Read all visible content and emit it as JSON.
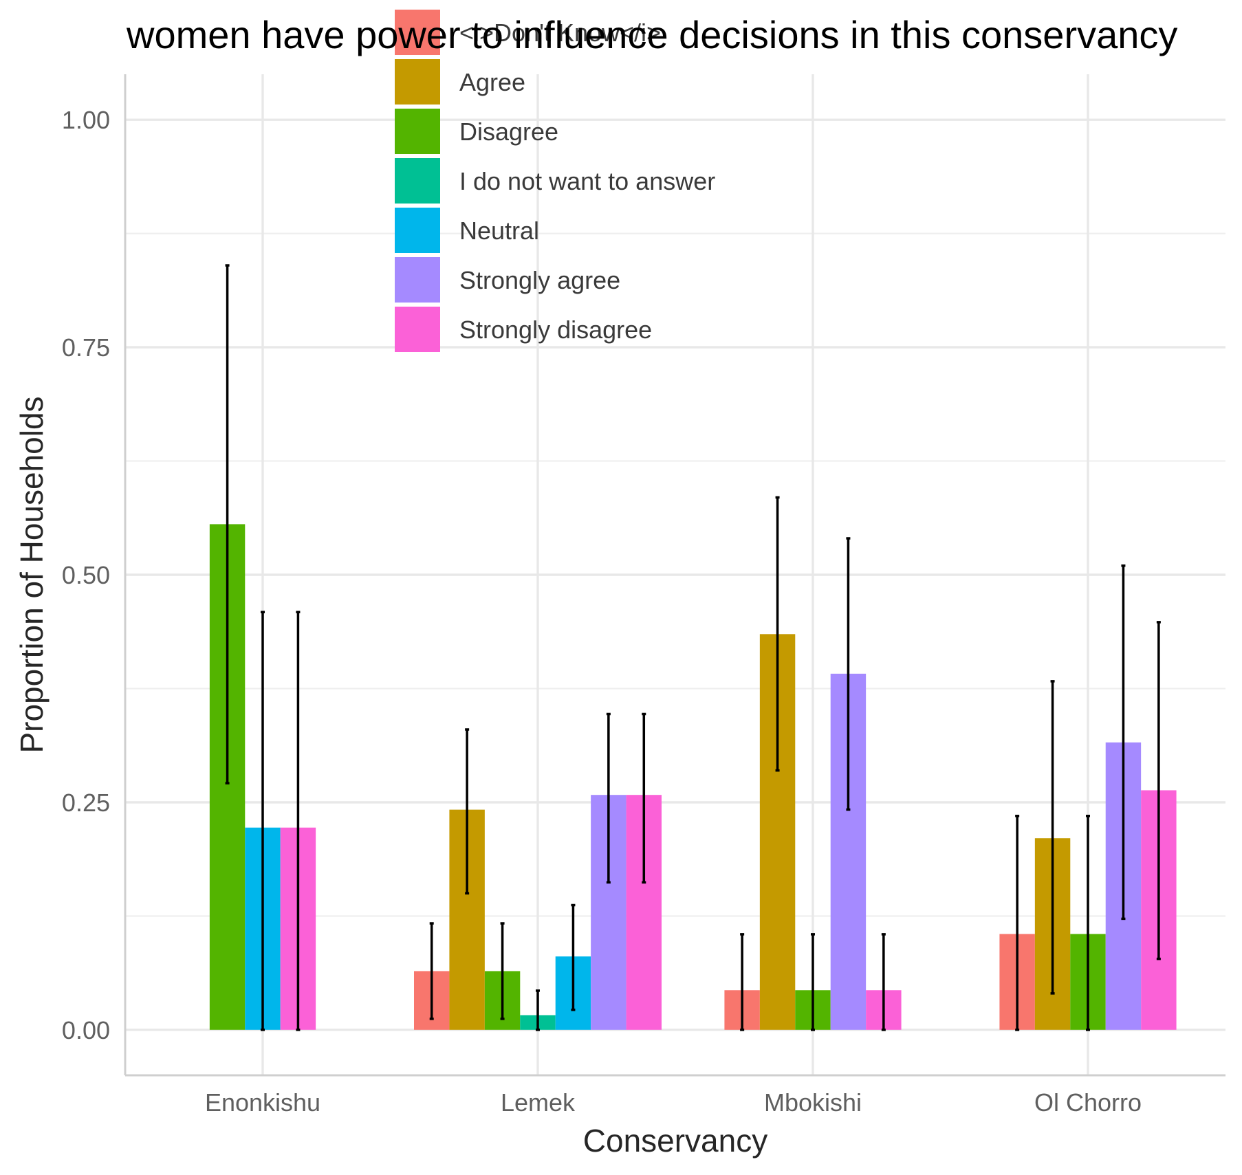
{
  "chart_data": {
    "type": "bar",
    "title": "women have power to influence decisions in this conservancy",
    "xlabel": "Conservancy",
    "ylabel": "Proportion of Households",
    "categories": [
      "Enonkishu",
      "Lemek",
      "Mbokishi",
      "Ol Chorro"
    ],
    "ylim": [
      -0.05,
      1.05
    ],
    "yticks": [
      "0.00",
      "0.25",
      "0.50",
      "0.75",
      "1.00"
    ],
    "ytick_values": [
      0,
      0.25,
      0.5,
      0.75,
      1.0
    ],
    "grid": true,
    "legend_position": "top",
    "series": [
      {
        "name": "<i>Don't Know</i>",
        "color": "#F8766D",
        "values": [
          null,
          0.0645,
          0.0435,
          0.1053
        ],
        "lower": [
          null,
          0.012,
          0.0,
          0.0
        ],
        "upper": [
          null,
          0.117,
          0.105,
          0.235
        ]
      },
      {
        "name": "Agree",
        "color": "#C49A00",
        "values": [
          null,
          0.2419,
          0.4348,
          0.2105
        ],
        "lower": [
          null,
          0.15,
          0.285,
          0.04
        ],
        "upper": [
          null,
          0.33,
          0.585,
          0.383
        ]
      },
      {
        "name": "Disagree",
        "color": "#53B400",
        "values": [
          0.5556,
          0.0645,
          0.0435,
          0.1053
        ],
        "lower": [
          0.271,
          0.012,
          0.0,
          0.0
        ],
        "upper": [
          0.84,
          0.117,
          0.105,
          0.235
        ]
      },
      {
        "name": "I do not want to answer",
        "color": "#00C094",
        "values": [
          null,
          0.0161,
          null,
          null
        ],
        "lower": [
          null,
          0.0,
          null,
          null
        ],
        "upper": [
          null,
          0.043,
          null,
          null
        ]
      },
      {
        "name": "Neutral",
        "color": "#00B6EB",
        "values": [
          0.2222,
          0.0806,
          null,
          null
        ],
        "lower": [
          0.0,
          0.022,
          null,
          null
        ],
        "upper": [
          0.459,
          0.137,
          null,
          null
        ]
      },
      {
        "name": "Strongly agree",
        "color": "#A58AFF",
        "values": [
          null,
          0.2581,
          0.3913,
          0.3158
        ],
        "lower": [
          null,
          0.162,
          0.242,
          0.122
        ],
        "upper": [
          null,
          0.347,
          0.54,
          0.51
        ]
      },
      {
        "name": "Strongly disagree",
        "color": "#FB61D7",
        "values": [
          0.2222,
          0.2581,
          0.0435,
          0.2632
        ],
        "lower": [
          0.0,
          0.162,
          0.0,
          0.078
        ],
        "upper": [
          0.459,
          0.347,
          0.105,
          0.448
        ]
      }
    ]
  }
}
